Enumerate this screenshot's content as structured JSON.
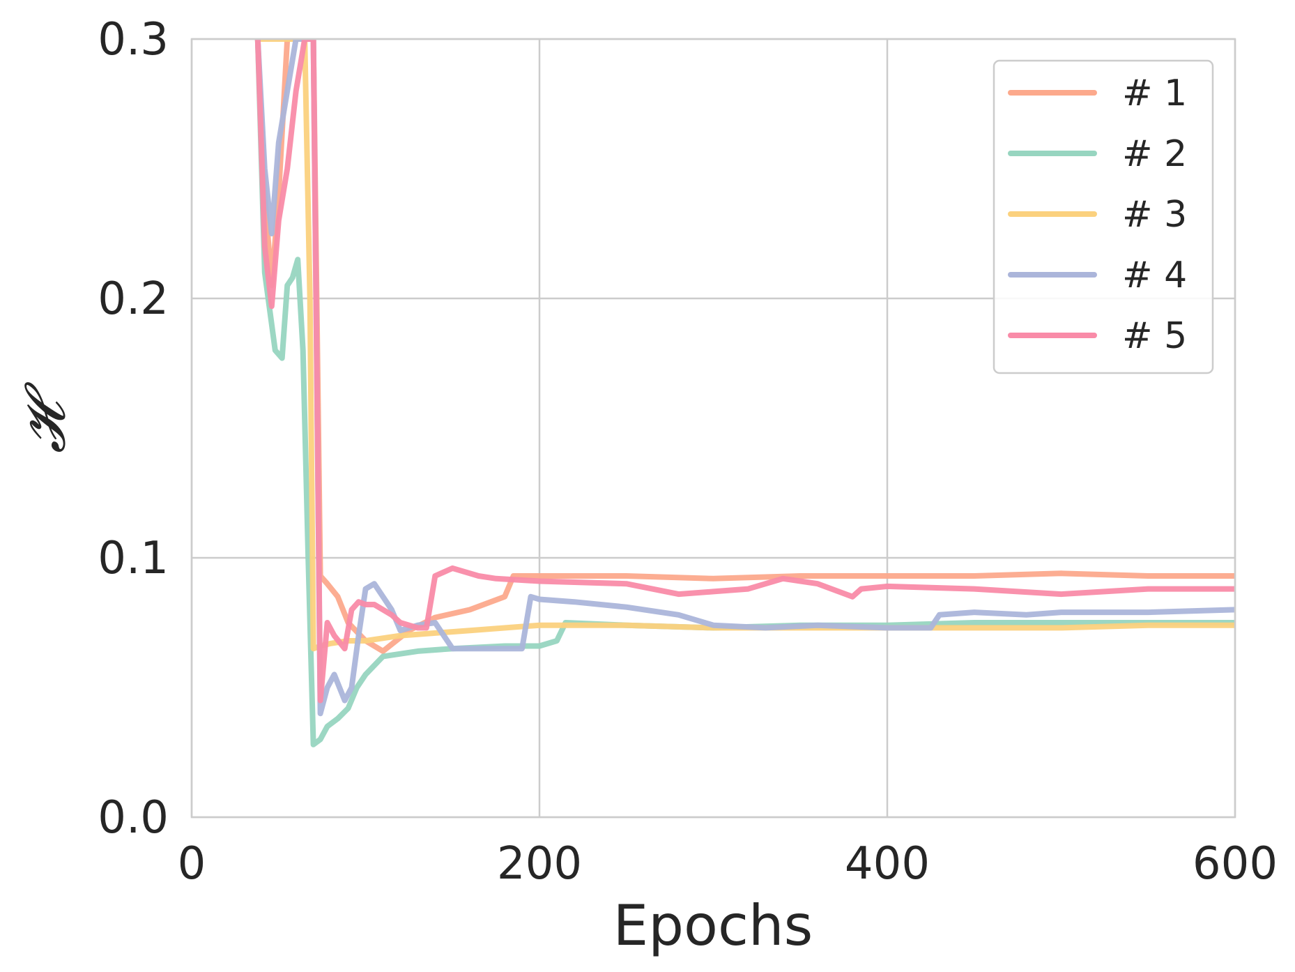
{
  "chart_data": {
    "type": "line",
    "xlabel": "Epochs",
    "ylabel": "𝓗",
    "xlim": [
      0,
      600
    ],
    "ylim": [
      0.0,
      0.3
    ],
    "xticks": [
      0,
      200,
      400,
      600
    ],
    "xtick_labels": [
      "0",
      "200",
      "400",
      "600"
    ],
    "yticks": [
      0.0,
      0.1,
      0.2,
      0.3
    ],
    "ytick_labels": [
      "0.0",
      "0.1",
      "0.2",
      "0.3"
    ],
    "grid": true,
    "legend_position": "top-right",
    "series": [
      {
        "name": "# 1",
        "color": "#fca98c",
        "x": [
          38,
          42,
          46,
          50,
          55,
          60,
          65,
          70,
          74,
          78,
          84,
          90,
          100,
          110,
          125,
          140,
          160,
          180,
          185,
          200,
          250,
          300,
          350,
          400,
          450,
          500,
          550,
          600
        ],
        "y": [
          0.3,
          0.24,
          0.205,
          0.24,
          0.3,
          0.3,
          0.3,
          0.3,
          0.093,
          0.09,
          0.085,
          0.075,
          0.068,
          0.064,
          0.072,
          0.077,
          0.08,
          0.085,
          0.093,
          0.093,
          0.093,
          0.092,
          0.093,
          0.093,
          0.093,
          0.094,
          0.093,
          0.093
        ]
      },
      {
        "name": "# 2",
        "color": "#97d5c0",
        "x": [
          38,
          42,
          45,
          48,
          52,
          55,
          58,
          61,
          64,
          67,
          70,
          74,
          78,
          84,
          90,
          95,
          100,
          110,
          130,
          150,
          180,
          200,
          210,
          215,
          250,
          300,
          350,
          400,
          450,
          500,
          550,
          600
        ],
        "y": [
          0.3,
          0.21,
          0.195,
          0.18,
          0.177,
          0.205,
          0.208,
          0.215,
          0.18,
          0.1,
          0.028,
          0.03,
          0.035,
          0.038,
          0.042,
          0.05,
          0.055,
          0.062,
          0.064,
          0.065,
          0.066,
          0.066,
          0.068,
          0.075,
          0.074,
          0.073,
          0.074,
          0.074,
          0.075,
          0.075,
          0.075,
          0.075
        ]
      },
      {
        "name": "# 3",
        "color": "#fbd17e",
        "x": [
          38,
          45,
          50,
          55,
          60,
          65,
          68,
          70,
          74,
          80,
          90,
          100,
          120,
          140,
          160,
          200,
          250,
          300,
          350,
          400,
          450,
          500,
          550,
          600
        ],
        "y": [
          0.3,
          0.3,
          0.3,
          0.3,
          0.3,
          0.3,
          0.2,
          0.065,
          0.066,
          0.067,
          0.068,
          0.068,
          0.07,
          0.071,
          0.072,
          0.074,
          0.074,
          0.073,
          0.073,
          0.073,
          0.073,
          0.073,
          0.074,
          0.074
        ]
      },
      {
        "name": "# 4",
        "color": "#abb5da",
        "x": [
          38,
          42,
          46,
          50,
          55,
          60,
          65,
          70,
          74,
          78,
          82,
          88,
          92,
          96,
          100,
          105,
          110,
          115,
          120,
          130,
          140,
          150,
          170,
          190,
          195,
          200,
          220,
          250,
          280,
          300,
          330,
          360,
          400,
          425,
          430,
          450,
          480,
          500,
          550,
          600
        ],
        "y": [
          0.3,
          0.25,
          0.225,
          0.26,
          0.28,
          0.3,
          0.3,
          0.3,
          0.04,
          0.05,
          0.055,
          0.045,
          0.05,
          0.07,
          0.088,
          0.09,
          0.085,
          0.08,
          0.072,
          0.074,
          0.075,
          0.065,
          0.065,
          0.065,
          0.085,
          0.084,
          0.083,
          0.081,
          0.078,
          0.074,
          0.073,
          0.074,
          0.073,
          0.073,
          0.078,
          0.079,
          0.078,
          0.079,
          0.079,
          0.08
        ]
      },
      {
        "name": "# 5",
        "color": "#f98ba8",
        "x": [
          38,
          42,
          46,
          50,
          55,
          60,
          65,
          70,
          74,
          78,
          82,
          88,
          92,
          96,
          100,
          105,
          110,
          115,
          120,
          130,
          135,
          140,
          150,
          165,
          175,
          200,
          250,
          280,
          300,
          320,
          340,
          360,
          380,
          385,
          400,
          450,
          500,
          550,
          600
        ],
        "y": [
          0.3,
          0.22,
          0.197,
          0.23,
          0.25,
          0.28,
          0.3,
          0.3,
          0.045,
          0.075,
          0.07,
          0.065,
          0.08,
          0.083,
          0.082,
          0.082,
          0.08,
          0.078,
          0.075,
          0.073,
          0.073,
          0.093,
          0.096,
          0.093,
          0.092,
          0.091,
          0.09,
          0.086,
          0.087,
          0.088,
          0.092,
          0.09,
          0.085,
          0.088,
          0.089,
          0.088,
          0.086,
          0.088,
          0.088
        ]
      }
    ]
  }
}
